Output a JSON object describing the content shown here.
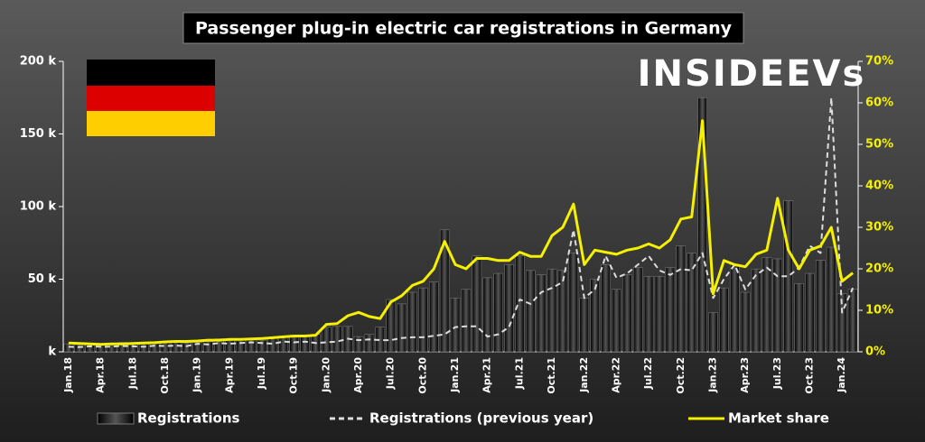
{
  "chart_data": {
    "type": "bar",
    "title": "Passenger plug-in electric car registrations in Germany",
    "logo": "INSIDEEVs",
    "categories": [
      "Jan.18",
      null,
      null,
      "Apr.18",
      null,
      null,
      "Jul.18",
      null,
      null,
      "Oct.18",
      null,
      null,
      "Jan.19",
      null,
      null,
      "Apr.19",
      null,
      null,
      "Jul.19",
      null,
      null,
      "Oct.19",
      null,
      null,
      "Jan.20",
      null,
      null,
      "Apr.20",
      null,
      null,
      "Jul.20",
      null,
      null,
      "Oct.20",
      null,
      null,
      "Jan.21",
      null,
      null,
      "Apr.21",
      null,
      null,
      "Jul.21",
      null,
      null,
      "Oct.21",
      null,
      null,
      "Jan.22",
      null,
      null,
      "Apr.22",
      null,
      null,
      "Jul.22",
      null,
      null,
      "Oct.22",
      null,
      null,
      "Jan.23",
      null,
      null,
      "Apr.23",
      null,
      null,
      "Jul.23",
      null,
      null,
      "Oct.23",
      null,
      null,
      "Jan.24",
      null
    ],
    "series": [
      {
        "name": "Registrations",
        "type": "bar",
        "color": "#1a1a1a",
        "values": [
          5500,
          5000,
          6000,
          5500,
          6000,
          6500,
          6000,
          5500,
          7000,
          6500,
          7000,
          6000,
          6500,
          7000,
          9000,
          8000,
          8500,
          8000,
          8000,
          9500,
          10000,
          10000,
          11000,
          12000,
          17000,
          17500,
          17500,
          10500,
          12000,
          17000,
          36000,
          33000,
          41000,
          44000,
          48000,
          84000,
          37000,
          43000,
          66000,
          51000,
          54000,
          60000,
          66000,
          56000,
          53000,
          57000,
          56000,
          68000,
          37000,
          50000,
          60000,
          43000,
          53000,
          58000,
          52000,
          52000,
          58000,
          73000,
          68000,
          175000,
          27000,
          44000,
          60000,
          41000,
          57000,
          65000,
          64000,
          104000,
          47000,
          54000,
          63000,
          72000,
          40000,
          43000
        ]
      },
      {
        "name": "Registrations (previous year)",
        "type": "line",
        "style": "dashed",
        "color": "#dddddd",
        "values": [
          3500,
          3200,
          3800,
          3500,
          3600,
          4000,
          3800,
          3500,
          4200,
          4000,
          4300,
          3900,
          5500,
          5000,
          6000,
          5500,
          6000,
          6500,
          6000,
          5500,
          7000,
          6500,
          7000,
          6000,
          6500,
          7000,
          9000,
          8000,
          8500,
          8000,
          8000,
          9500,
          10000,
          10000,
          11000,
          12000,
          17000,
          17500,
          17500,
          10500,
          12000,
          17000,
          36000,
          33000,
          41000,
          44000,
          48000,
          84000,
          37000,
          43000,
          66000,
          51000,
          54000,
          60000,
          66000,
          56000,
          53000,
          57000,
          56000,
          68000,
          37000,
          50000,
          60000,
          43000,
          53000,
          58000,
          52000,
          52000,
          58000,
          73000,
          68000,
          175000,
          27000,
          44000
        ]
      },
      {
        "name": "Market share",
        "type": "line",
        "axis": "y2",
        "color": "#f5f000",
        "values": [
          2.1,
          2,
          1.9,
          1.8,
          1.9,
          1.9,
          2,
          2.1,
          2.2,
          2.4,
          2.5,
          2.5,
          2.6,
          2.8,
          2.8,
          3,
          3,
          3.1,
          3.2,
          3.4,
          3.6,
          3.8,
          3.8,
          4,
          6.6,
          6.8,
          8.7,
          9.5,
          8.5,
          8,
          12,
          13.5,
          16,
          17,
          20,
          26.6,
          21,
          20,
          22.5,
          22.5,
          22,
          22,
          24,
          23,
          23,
          28,
          30,
          35.6,
          21,
          24.5,
          24,
          23.5,
          24.5,
          25,
          26,
          25,
          27,
          32,
          32.5,
          55.7,
          14,
          22,
          21,
          20.5,
          23.5,
          24.5,
          37,
          24.5,
          20,
          24.5,
          25.5,
          30,
          17,
          19
        ]
      }
    ],
    "ylim": [
      0,
      200000
    ],
    "yticks": [
      {
        "value": 0,
        "label": "k"
      },
      {
        "value": 50000,
        "label": "50 k"
      },
      {
        "value": 100000,
        "label": "100 k"
      },
      {
        "value": 150000,
        "label": "150 k"
      },
      {
        "value": 200000,
        "label": "200 k"
      }
    ],
    "y2lim": [
      0,
      70
    ],
    "y2ticks": [
      {
        "value": 0,
        "label": "0%"
      },
      {
        "value": 10,
        "label": "10%"
      },
      {
        "value": 20,
        "label": "20%"
      },
      {
        "value": 30,
        "label": "30%"
      },
      {
        "value": 40,
        "label": "40%"
      },
      {
        "value": 50,
        "label": "50%"
      },
      {
        "value": 60,
        "label": "60%"
      },
      {
        "value": 70,
        "label": "70%"
      }
    ],
    "grid": false
  }
}
